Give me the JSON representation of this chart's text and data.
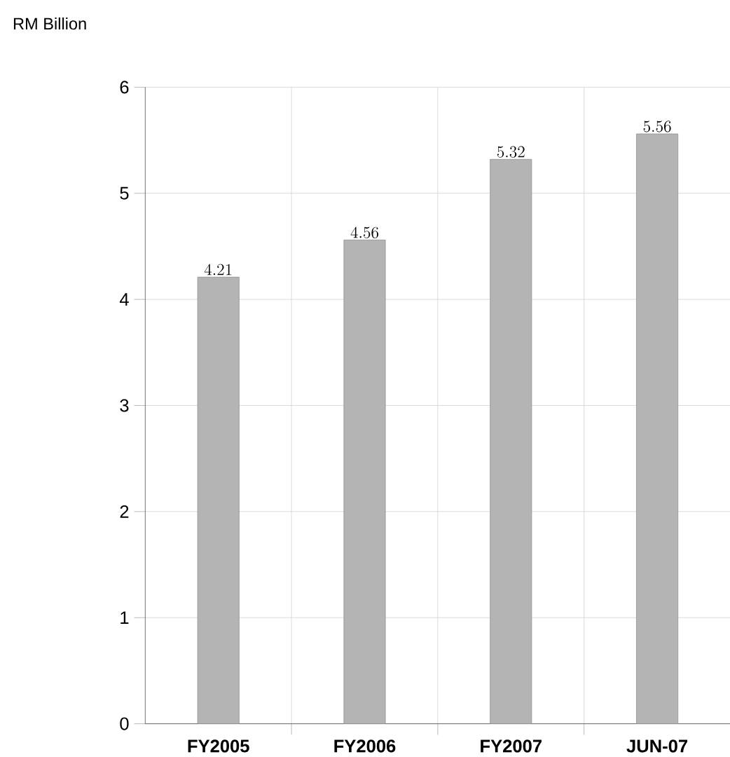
{
  "chart_data": {
    "type": "bar",
    "ylabel": "RM Billion",
    "categories": [
      "FY2005",
      "FY2006",
      "FY2007",
      "JUN-07"
    ],
    "values": [
      4.21,
      4.56,
      5.32,
      5.56
    ],
    "color": "#b4b4b4",
    "ylim": [
      0,
      6
    ],
    "yticks": [
      0,
      1,
      2,
      3,
      4,
      5,
      6
    ],
    "grid": true,
    "data_labels": true
  }
}
